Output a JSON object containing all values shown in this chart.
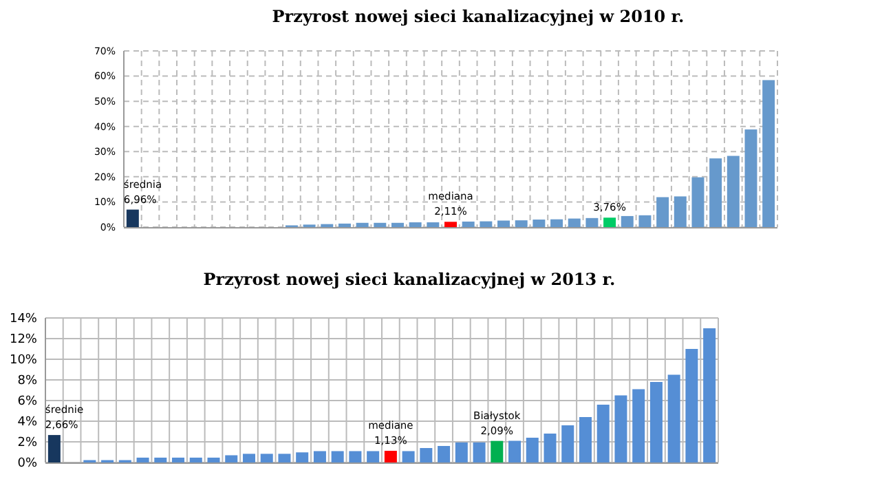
{
  "chart_data": [
    {
      "type": "bar",
      "title": "Przyrost nowej sieci kanalizacyjnej w 2010 r.",
      "categories": [
        null,
        null,
        null,
        null,
        null,
        null,
        null,
        null,
        null,
        null,
        null,
        null,
        null,
        null,
        null,
        null,
        null,
        null,
        null,
        null,
        null,
        null,
        null,
        null,
        null,
        null,
        null,
        null,
        null,
        null,
        null,
        null,
        null,
        null,
        null,
        null,
        null
      ],
      "values": [
        6.96,
        null,
        null,
        null,
        null,
        null,
        null,
        null,
        null,
        0.7,
        1,
        1.2,
        1.4,
        1.7,
        1.7,
        1.7,
        1.9,
        1.9,
        2.11,
        2.2,
        2.3,
        2.6,
        2.7,
        3,
        3.1,
        3.4,
        3.6,
        3.76,
        4.4,
        4.7,
        11.9,
        12.2,
        19.8,
        27.3,
        28.3,
        38.8,
        58.4
      ],
      "colors": [
        "#17375e",
        null,
        null,
        null,
        null,
        null,
        null,
        null,
        null,
        "#6699cc",
        "#6699cc",
        "#6699cc",
        "#6699cc",
        "#6699cc",
        "#6699cc",
        "#6699cc",
        "#6699cc",
        "#6699cc",
        "#ff0000",
        "#6699cc",
        "#6699cc",
        "#6699cc",
        "#6699cc",
        "#6699cc",
        "#6699cc",
        "#6699cc",
        "#6699cc",
        "#00cc66",
        "#6699cc",
        "#6699cc",
        "#6699cc",
        "#6699cc",
        "#6699cc",
        "#6699cc",
        "#6699cc",
        "#6699cc",
        "#6699cc"
      ],
      "value_labels": [
        "średnia\n6,96%",
        null,
        null,
        null,
        null,
        null,
        null,
        null,
        null,
        null,
        null,
        null,
        null,
        null,
        null,
        null,
        null,
        null,
        "mediana\n2,11%",
        null,
        null,
        null,
        null,
        null,
        null,
        null,
        null,
        "3,76%",
        null,
        null,
        null,
        null,
        null,
        null,
        null,
        null,
        null
      ],
      "ylim": [
        0,
        70
      ],
      "yticks": [
        {
          "value": 0,
          "label": "0%"
        },
        {
          "value": 10,
          "label": "10%"
        },
        {
          "value": 20,
          "label": "20%"
        },
        {
          "value": 30,
          "label": "30%"
        },
        {
          "value": 40,
          "label": "40%"
        },
        {
          "value": 50,
          "label": "50%"
        },
        {
          "value": 60,
          "label": "60%"
        },
        {
          "value": 70,
          "label": "70%"
        }
      ],
      "grid": true,
      "line_style": "dashed"
    },
    {
      "type": "bar",
      "title": "Przyrost nowej sieci kanalizacyjnej w 2013 r.",
      "categories": [
        null,
        null,
        null,
        null,
        null,
        null,
        null,
        null,
        null,
        null,
        null,
        null,
        null,
        null,
        null,
        null,
        null,
        null,
        null,
        null,
        null,
        null,
        null,
        null,
        null,
        null,
        null,
        null,
        null,
        null,
        null,
        null,
        null,
        null,
        null,
        null,
        null,
        null
      ],
      "values": [
        2.66,
        null,
        0.23,
        0.23,
        0.23,
        0.47,
        0.47,
        0.47,
        0.47,
        0.47,
        0.7,
        0.84,
        0.84,
        0.84,
        0.98,
        1.1,
        1.1,
        1.1,
        1.1,
        1.13,
        1.1,
        1.4,
        1.6,
        1.94,
        1.94,
        2.09,
        2.1,
        2.4,
        2.8,
        3.6,
        4.4,
        5.6,
        6.5,
        7.1,
        7.8,
        8.5,
        11,
        13
      ],
      "colors": [
        "#17375e",
        null,
        "#558ed5",
        "#558ed5",
        "#558ed5",
        "#558ed5",
        "#558ed5",
        "#558ed5",
        "#558ed5",
        "#558ed5",
        "#558ed5",
        "#558ed5",
        "#558ed5",
        "#558ed5",
        "#558ed5",
        "#558ed5",
        "#558ed5",
        "#558ed5",
        "#558ed5",
        "#ff0000",
        "#558ed5",
        "#558ed5",
        "#558ed5",
        "#558ed5",
        "#558ed5",
        "#00b050",
        "#558ed5",
        "#558ed5",
        "#558ed5",
        "#558ed5",
        "#558ed5",
        "#558ed5",
        "#558ed5",
        "#558ed5",
        "#558ed5",
        "#558ed5",
        "#558ed5",
        "#558ed5"
      ],
      "value_labels": [
        "średnie\n2,66%",
        null,
        null,
        null,
        null,
        null,
        null,
        null,
        null,
        null,
        null,
        null,
        null,
        null,
        null,
        null,
        null,
        null,
        null,
        "mediane\n1,13%",
        null,
        null,
        null,
        null,
        null,
        "Białystok\n2,09%",
        null,
        null,
        null,
        null,
        null,
        null,
        null,
        null,
        null,
        null,
        null,
        null
      ],
      "ylim": [
        0,
        14
      ],
      "yticks": [
        {
          "value": 0,
          "label": "0%"
        },
        {
          "value": 2,
          "label": "2%"
        },
        {
          "value": 4,
          "label": "4%"
        },
        {
          "value": 6,
          "label": "6%"
        },
        {
          "value": 8,
          "label": "8%"
        },
        {
          "value": 10,
          "label": "10%"
        },
        {
          "value": 12,
          "label": "12%"
        },
        {
          "value": 14,
          "label": "14%"
        }
      ],
      "grid": true,
      "line_style": "solid"
    }
  ]
}
